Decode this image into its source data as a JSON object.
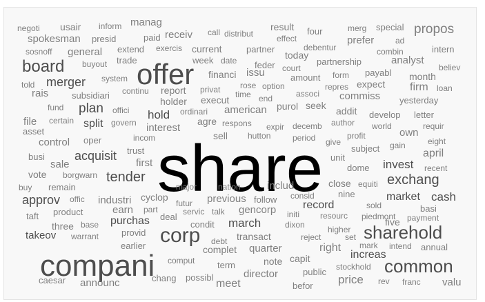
{
  "word_cloud": {
    "colors": {
      "dark": "#000000",
      "mid": "#4d4d4d",
      "light": "#7f7f7f",
      "faint": "#a6a6a6"
    },
    "words": [
      {
        "text": "share",
        "size": 96,
        "shade": "dark"
      },
      {
        "text": "compani",
        "size": 44,
        "shade": "mid"
      },
      {
        "text": "offer",
        "size": 42,
        "shade": "mid"
      },
      {
        "text": "corp",
        "size": 30,
        "shade": "mid"
      },
      {
        "text": "common",
        "size": 26,
        "shade": "mid"
      },
      {
        "text": "sharehold",
        "size": 26,
        "shade": "mid"
      },
      {
        "text": "board",
        "size": 24,
        "shade": "mid"
      },
      {
        "text": "exchang",
        "size": 20,
        "shade": "mid"
      },
      {
        "text": "tender",
        "size": 20,
        "shade": "mid"
      },
      {
        "text": "propos",
        "size": 19,
        "shade": "light"
      },
      {
        "text": "plan",
        "size": 19,
        "shade": "mid"
      },
      {
        "text": "merger",
        "size": 18,
        "shade": "mid"
      },
      {
        "text": "acquisit",
        "size": 18,
        "shade": "mid"
      },
      {
        "text": "approv",
        "size": 18,
        "shade": "mid"
      },
      {
        "text": "invest",
        "size": 17,
        "shade": "mid"
      },
      {
        "text": "march",
        "size": 17,
        "shade": "mid"
      },
      {
        "text": "price",
        "size": 17,
        "shade": "light"
      },
      {
        "text": "cash",
        "size": 17,
        "shade": "mid"
      },
      {
        "text": "hold",
        "size": 17,
        "shade": "mid"
      },
      {
        "text": "record",
        "size": 16,
        "shade": "mid"
      },
      {
        "text": "increas",
        "size": 16,
        "shade": "mid"
      },
      {
        "text": "april",
        "size": 16,
        "shade": "light"
      },
      {
        "text": "market",
        "size": 16,
        "shade": "mid"
      },
      {
        "text": "meet",
        "size": 16,
        "shade": "light"
      },
      {
        "text": "purchas",
        "size": 16,
        "shade": "mid"
      },
      {
        "text": "split",
        "size": 16,
        "shade": "mid"
      },
      {
        "text": "firm",
        "size": 16,
        "shade": "light"
      },
      {
        "text": "right",
        "size": 16,
        "shade": "light"
      },
      {
        "text": "takeov",
        "size": 15,
        "shade": "mid"
      },
      {
        "text": "own",
        "size": 15,
        "shade": "light"
      },
      {
        "text": "commiss",
        "size": 15,
        "shade": "light"
      },
      {
        "text": "prefer",
        "size": 15,
        "shade": "light"
      },
      {
        "text": "quarter",
        "size": 15,
        "shade": "light"
      },
      {
        "text": "announc",
        "size": 15,
        "shade": "light"
      },
      {
        "text": "interest",
        "size": 15,
        "shade": "light"
      },
      {
        "text": "manag",
        "size": 15,
        "shade": "light"
      },
      {
        "text": "director",
        "size": 15,
        "shade": "light"
      },
      {
        "text": "earn",
        "size": 15,
        "shade": "light"
      },
      {
        "text": "previous",
        "size": 15,
        "shade": "light"
      },
      {
        "text": "gencorp",
        "size": 15,
        "shade": "light"
      },
      {
        "text": "analyst",
        "size": 15,
        "shade": "light"
      },
      {
        "text": "transact",
        "size": 14,
        "shade": "light"
      },
      {
        "text": "includ",
        "size": 15,
        "shade": "light"
      },
      {
        "text": "industri",
        "size": 15,
        "shade": "light"
      },
      {
        "text": "american",
        "size": 15,
        "shade": "light"
      },
      {
        "text": "control",
        "size": 15,
        "shade": "light"
      },
      {
        "text": "issu",
        "size": 15,
        "shade": "light"
      },
      {
        "text": "sale",
        "size": 15,
        "shade": "light"
      },
      {
        "text": "valu",
        "size": 15,
        "shade": "light"
      },
      {
        "text": "general",
        "size": 15,
        "shade": "light"
      },
      {
        "text": "receiv",
        "size": 15,
        "shade": "light"
      },
      {
        "text": "first",
        "size": 15,
        "shade": "light"
      },
      {
        "text": "spokesman",
        "size": 15,
        "shade": "light"
      },
      {
        "text": "file",
        "size": 15,
        "shade": "light"
      },
      {
        "text": "capit",
        "size": 14,
        "shade": "light"
      },
      {
        "text": "rais",
        "size": 15,
        "shade": "light"
      },
      {
        "text": "seek",
        "size": 14,
        "shade": "light"
      },
      {
        "text": "five",
        "size": 14,
        "shade": "light"
      },
      {
        "text": "note",
        "size": 14,
        "shade": "light"
      },
      {
        "text": "month",
        "size": 14,
        "shade": "light"
      },
      {
        "text": "expect",
        "size": 14,
        "shade": "light"
      },
      {
        "text": "complet",
        "size": 14,
        "shade": "light"
      },
      {
        "text": "usair",
        "size": 14,
        "shade": "light"
      },
      {
        "text": "result",
        "size": 14,
        "shade": "light"
      },
      {
        "text": "today",
        "size": 14,
        "shade": "light"
      },
      {
        "text": "holder",
        "size": 14,
        "shade": "light"
      },
      {
        "text": "current",
        "size": 14,
        "shade": "light"
      },
      {
        "text": "report",
        "size": 14,
        "shade": "light"
      },
      {
        "text": "financi",
        "size": 14,
        "shade": "light"
      },
      {
        "text": "execut",
        "size": 14,
        "shade": "light"
      },
      {
        "text": "purol",
        "size": 14,
        "shade": "light"
      },
      {
        "text": "sell",
        "size": 14,
        "shade": "light"
      },
      {
        "text": "agre",
        "size": 14,
        "shade": "light"
      },
      {
        "text": "cyclop",
        "size": 14,
        "shade": "light"
      },
      {
        "text": "vote",
        "size": 14,
        "shade": "light"
      },
      {
        "text": "three",
        "size": 14,
        "shade": "light"
      },
      {
        "text": "addit",
        "size": 14,
        "shade": "light"
      },
      {
        "text": "close",
        "size": 14,
        "shade": "light"
      },
      {
        "text": "subject",
        "size": 13,
        "shade": "light"
      },
      {
        "text": "intern",
        "size": 13,
        "shade": "light"
      },
      {
        "text": "busi",
        "size": 13,
        "shade": "light"
      },
      {
        "text": "unit",
        "size": 13,
        "shade": "light"
      },
      {
        "text": "earlier",
        "size": 13,
        "shade": "light"
      },
      {
        "text": "condit",
        "size": 13,
        "shade": "light"
      },
      {
        "text": "deal",
        "size": 13,
        "shade": "light"
      },
      {
        "text": "oper",
        "size": 13,
        "shade": "light"
      },
      {
        "text": "subsidiari",
        "size": 13,
        "shade": "light"
      },
      {
        "text": "yesterday",
        "size": 13,
        "shade": "light"
      },
      {
        "text": "letter",
        "size": 13,
        "shade": "light"
      },
      {
        "text": "dome",
        "size": 13,
        "shade": "light"
      },
      {
        "text": "possibl",
        "size": 13,
        "shade": "light"
      },
      {
        "text": "provid",
        "size": 13,
        "shade": "light"
      },
      {
        "text": "annual",
        "size": 13,
        "shade": "light"
      },
      {
        "text": "basi",
        "size": 13,
        "shade": "light"
      },
      {
        "text": "chang",
        "size": 13,
        "shade": "light"
      },
      {
        "text": "public",
        "size": 13,
        "shade": "light"
      },
      {
        "text": "develop",
        "size": 13,
        "shade": "light"
      },
      {
        "text": "extend",
        "size": 13,
        "shade": "light"
      },
      {
        "text": "trade",
        "size": 13,
        "shade": "light"
      },
      {
        "text": "partnership",
        "size": 13,
        "shade": "light"
      },
      {
        "text": "amount",
        "size": 13,
        "shade": "light"
      },
      {
        "text": "feder",
        "size": 13,
        "shade": "light"
      },
      {
        "text": "week",
        "size": 13,
        "shade": "light"
      },
      {
        "text": "special",
        "size": 13,
        "shade": "light"
      },
      {
        "text": "payabl",
        "size": 13,
        "shade": "light"
      },
      {
        "text": "term",
        "size": 13,
        "shade": "light"
      },
      {
        "text": "paid",
        "size": 13,
        "shade": "light"
      },
      {
        "text": "four",
        "size": 13,
        "shade": "light"
      },
      {
        "text": "presid",
        "size": 13,
        "shade": "light"
      },
      {
        "text": "partner",
        "size": 13,
        "shade": "light"
      },
      {
        "text": "caesar",
        "size": 13,
        "shade": "light"
      },
      {
        "text": "befor",
        "size": 13,
        "shade": "light"
      },
      {
        "text": "asset",
        "size": 13,
        "shade": "light"
      },
      {
        "text": "product",
        "size": 13,
        "shade": "light"
      },
      {
        "text": "remain",
        "size": 13,
        "shade": "light"
      },
      {
        "text": "taft",
        "size": 13,
        "shade": "light"
      },
      {
        "text": "trust",
        "size": 13,
        "shade": "light"
      },
      {
        "text": "follow",
        "size": 13,
        "shade": "light"
      },
      {
        "text": "nine",
        "size": 13,
        "shade": "light"
      },
      {
        "text": "mark",
        "size": 12,
        "shade": "light"
      },
      {
        "text": "told",
        "size": 12,
        "shade": "light"
      },
      {
        "text": "fund",
        "size": 12,
        "shade": "light"
      },
      {
        "text": "world",
        "size": 12,
        "shade": "light"
      },
      {
        "text": "respons",
        "size": 12,
        "shade": "light"
      },
      {
        "text": "comput",
        "size": 12,
        "shade": "light"
      },
      {
        "text": "hutton",
        "size": 12,
        "shade": "light"
      },
      {
        "text": "govern",
        "size": 12,
        "shade": "light"
      },
      {
        "text": "certain",
        "size": 12,
        "shade": "light"
      },
      {
        "text": "warrant",
        "size": 12,
        "shade": "light"
      },
      {
        "text": "base",
        "size": 12,
        "shade": "light"
      },
      {
        "text": "merg",
        "size": 12,
        "shade": "light"
      },
      {
        "text": "option",
        "size": 12,
        "shade": "light"
      },
      {
        "text": "privat",
        "size": 12,
        "shade": "light"
      },
      {
        "text": "court",
        "size": 12,
        "shade": "light"
      },
      {
        "text": "form",
        "size": 12,
        "shade": "light"
      },
      {
        "text": "rose",
        "size": 12,
        "shade": "light"
      },
      {
        "text": "sold",
        "size": 12,
        "shade": "light"
      },
      {
        "text": "piedmont",
        "size": 12,
        "shade": "light"
      },
      {
        "text": "intend",
        "size": 12,
        "shade": "light"
      },
      {
        "text": "author",
        "size": 12,
        "shade": "light"
      },
      {
        "text": "higher",
        "size": 12,
        "shade": "light"
      },
      {
        "text": "reject",
        "size": 12,
        "shade": "light"
      },
      {
        "text": "expir",
        "size": 12,
        "shade": "light"
      },
      {
        "text": "decemb",
        "size": 12,
        "shade": "light"
      },
      {
        "text": "repres",
        "size": 12,
        "shade": "light"
      },
      {
        "text": "combin",
        "size": 12,
        "shade": "light"
      },
      {
        "text": "end",
        "size": 12,
        "shade": "light"
      },
      {
        "text": "profit",
        "size": 12,
        "shade": "light"
      },
      {
        "text": "distribut",
        "size": 12,
        "shade": "light"
      },
      {
        "text": "effect",
        "size": 12,
        "shade": "light"
      },
      {
        "text": "system",
        "size": 12,
        "shade": "light"
      },
      {
        "text": "continu",
        "size": 12,
        "shade": "light"
      },
      {
        "text": "buyout",
        "size": 12,
        "shade": "light"
      },
      {
        "text": "date",
        "size": 12,
        "shade": "light"
      },
      {
        "text": "inform",
        "size": 12,
        "shade": "light"
      },
      {
        "text": "debentur",
        "size": 12,
        "shade": "light"
      },
      {
        "text": "associ",
        "size": 12,
        "shade": "light"
      },
      {
        "text": "time",
        "size": 12,
        "shade": "light"
      },
      {
        "text": "offici",
        "size": 12,
        "shade": "light"
      },
      {
        "text": "incom",
        "size": 12,
        "shade": "light"
      },
      {
        "text": "ordinari",
        "size": 12,
        "shade": "light"
      },
      {
        "text": "exercis",
        "size": 12,
        "shade": "light"
      },
      {
        "text": "call",
        "size": 12,
        "shade": "light"
      },
      {
        "text": "negoti",
        "size": 12,
        "shade": "light"
      },
      {
        "text": "sosnoff",
        "size": 12,
        "shade": "light"
      },
      {
        "text": "ad",
        "size": 12,
        "shade": "light"
      },
      {
        "text": "believ",
        "size": 12,
        "shade": "light"
      },
      {
        "text": "loan",
        "size": 12,
        "shade": "light"
      },
      {
        "text": "payment",
        "size": 12,
        "shade": "light"
      },
      {
        "text": "requir",
        "size": 12,
        "shade": "light"
      },
      {
        "text": "eight",
        "size": 12,
        "shade": "light"
      },
      {
        "text": "recent",
        "size": 12,
        "shade": "light"
      },
      {
        "text": "gain",
        "size": 12,
        "shade": "light"
      },
      {
        "text": "give",
        "size": 12,
        "shade": "light"
      },
      {
        "text": "equiti",
        "size": 12,
        "shade": "light"
      },
      {
        "text": "period",
        "size": 12,
        "shade": "light"
      },
      {
        "text": "consid",
        "size": 12,
        "shade": "light"
      },
      {
        "text": "resourc",
        "size": 12,
        "shade": "light"
      },
      {
        "text": "initi",
        "size": 12,
        "shade": "light"
      },
      {
        "text": "dixon",
        "size": 12,
        "shade": "light"
      },
      {
        "text": "debt",
        "size": 12,
        "shade": "light"
      },
      {
        "text": "set",
        "size": 12,
        "shade": "light"
      },
      {
        "text": "stockhold",
        "size": 12,
        "shade": "light"
      },
      {
        "text": "rev",
        "size": 12,
        "shade": "light"
      },
      {
        "text": "franc",
        "size": 12,
        "shade": "light"
      },
      {
        "text": "major",
        "size": 12,
        "shade": "light"
      },
      {
        "text": "nation",
        "size": 12,
        "shade": "light"
      },
      {
        "text": "futur",
        "size": 12,
        "shade": "light"
      },
      {
        "text": "servic",
        "size": 12,
        "shade": "light"
      },
      {
        "text": "talk",
        "size": 12,
        "shade": "light"
      },
      {
        "text": "part",
        "size": 12,
        "shade": "light"
      },
      {
        "text": "offic",
        "size": 12,
        "shade": "light"
      },
      {
        "text": "borgwarn",
        "size": 12,
        "shade": "light"
      },
      {
        "text": "buy",
        "size": 12,
        "shade": "light"
      }
    ]
  }
}
